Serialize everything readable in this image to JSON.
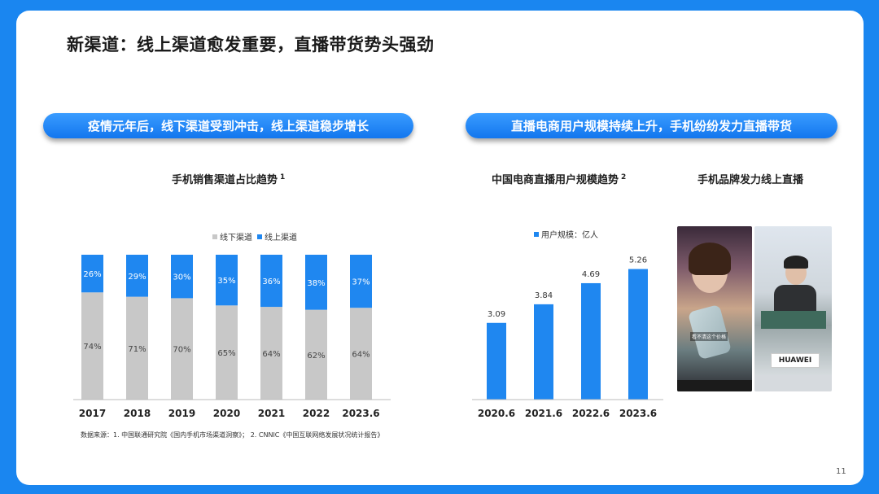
{
  "slide": {
    "title": "新渠道：线上渠道愈发重要，直播带货势头强劲",
    "banner_left": "疫情元年后，线下渠道受到冲击，线上渠道稳步增长",
    "banner_right": "直播电商用户规模持续上升，手机纷纷发力直播带货",
    "chart1_title": "手机销售渠道占比趋势",
    "chart1_note": "1",
    "chart2_title": "中国电商直播用户规模趋势",
    "chart2_note": "2",
    "photos_title": "手机品牌发力线上直播",
    "source": "数据来源：1. 中国联通研究院《国内手机市场渠道洞察》； 2. CNNIC《中国互联网络发展状况统计报告》",
    "page_number": "11"
  },
  "photos": {
    "left_caption": "看不清这个价格",
    "right_brand": "HUAWEI"
  },
  "colors": {
    "accent": "#1a86f0",
    "online": "#1f87f0",
    "offline": "#c8c8c8"
  },
  "chart_data": [
    {
      "type": "bar",
      "stacked": true,
      "categories": [
        "2017",
        "2018",
        "2019",
        "2020",
        "2021",
        "2022",
        "2023.6"
      ],
      "series": [
        {
          "name": "线下渠道",
          "values": [
            74,
            71,
            70,
            65,
            64,
            62,
            64
          ],
          "labels": [
            "74%",
            "71%",
            "70%",
            "65%",
            "64%",
            "62%",
            "64%"
          ]
        },
        {
          "name": "线上渠道",
          "values": [
            26,
            29,
            30,
            35,
            36,
            38,
            37
          ],
          "labels": [
            "26%",
            "29%",
            "30%",
            "35%",
            "36%",
            "38%",
            "37%"
          ]
        }
      ],
      "ylim": [
        0,
        100
      ],
      "legend": "top-center"
    },
    {
      "type": "bar",
      "categories": [
        "2020.6",
        "2021.6",
        "2022.6",
        "2023.6"
      ],
      "series": [
        {
          "name": "用户规模：亿人",
          "values": [
            3.09,
            3.84,
            4.69,
            5.26
          ],
          "labels": [
            "3.09",
            "3.84",
            "4.69",
            "5.26"
          ]
        }
      ],
      "ylim": [
        0,
        6
      ],
      "legend": "top-center"
    }
  ]
}
